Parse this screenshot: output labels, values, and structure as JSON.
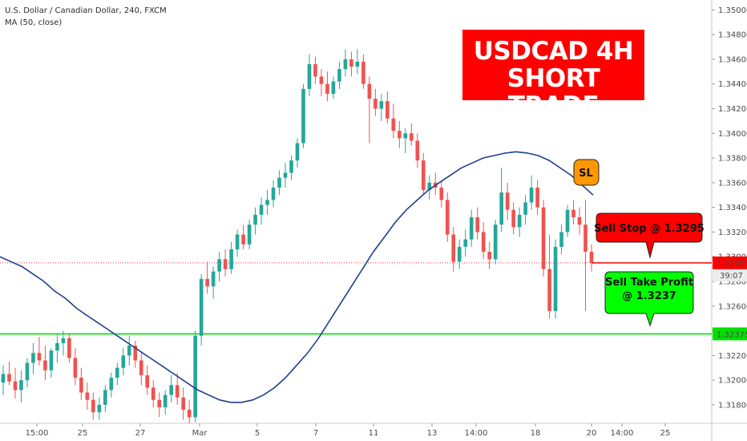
{
  "header": {
    "symbol_line": "U.S. Dollar / Canadian Dollar, 240, FXCM",
    "indicator_line": "MA (50, close)"
  },
  "banner": {
    "line1": "USDCAD 4H",
    "line2": "SHORT TRADE"
  },
  "annotations": {
    "sl": "SL",
    "sell_stop": "Sell Stop @ 1.3295",
    "take_profit_line1": "Sell Take Profit",
    "take_profit_line2": "@ 1.3237"
  },
  "price_labels": {
    "current": "1.32950",
    "countdown": "39:07",
    "green_level": "1.32375"
  },
  "colors": {
    "up_candle": "#26a69a",
    "down_candle": "#ef5350",
    "ma_line": "#1f3f8f",
    "support_line": "#00e000",
    "price_line": "#ff0000",
    "banner": "#ff0000",
    "sl_box": "#ff9800",
    "take_profit_box": "#00ff00"
  },
  "chart_data": {
    "type": "candlestick",
    "ylim": [
      1.3165,
      1.3508
    ],
    "y_ticks": [
      "1.31800",
      "1.32000",
      "1.32200",
      "1.32400",
      "1.32600",
      "1.32800",
      "1.33000",
      "1.33200",
      "1.33400",
      "1.33600",
      "1.33800",
      "1.34000",
      "1.34200",
      "1.34400",
      "1.34600",
      "1.34800",
      "1.35000"
    ],
    "x_ticks": [
      "15:00",
      "25",
      "27",
      "Mar",
      "5",
      "7",
      "11",
      "13",
      "14:00",
      "18",
      "20",
      "14:00",
      "25"
    ],
    "horizontal_lines": [
      {
        "value": 1.32375,
        "role": "support"
      },
      {
        "value": 1.3295,
        "role": "entry"
      }
    ],
    "ohlc": [
      [
        1.3198,
        1.3212,
        1.3188,
        1.3205
      ],
      [
        1.3205,
        1.3215,
        1.3196,
        1.3199
      ],
      [
        1.3199,
        1.321,
        1.3185,
        1.3192
      ],
      [
        1.3192,
        1.3208,
        1.3182,
        1.32
      ],
      [
        1.32,
        1.3218,
        1.3194,
        1.3214
      ],
      [
        1.3214,
        1.323,
        1.3205,
        1.3222
      ],
      [
        1.3222,
        1.3235,
        1.3212,
        1.3216
      ],
      [
        1.3216,
        1.3228,
        1.32,
        1.3208
      ],
      [
        1.3208,
        1.3226,
        1.3202,
        1.3224
      ],
      [
        1.3224,
        1.3238,
        1.3214,
        1.323
      ],
      [
        1.323,
        1.324,
        1.322,
        1.3234
      ],
      [
        1.3234,
        1.3238,
        1.3214,
        1.3218
      ],
      [
        1.3218,
        1.3226,
        1.3196,
        1.3202
      ],
      [
        1.3202,
        1.321,
        1.3184,
        1.319
      ],
      [
        1.319,
        1.3198,
        1.3176,
        1.3184
      ],
      [
        1.3184,
        1.319,
        1.3168,
        1.3174
      ],
      [
        1.3174,
        1.3186,
        1.3168,
        1.318
      ],
      [
        1.318,
        1.3196,
        1.3174,
        1.3192
      ],
      [
        1.3192,
        1.3206,
        1.3186,
        1.3202
      ],
      [
        1.3202,
        1.3214,
        1.3196,
        1.321
      ],
      [
        1.321,
        1.3226,
        1.3204,
        1.322
      ],
      [
        1.322,
        1.3236,
        1.3212,
        1.3228
      ],
      [
        1.3228,
        1.3232,
        1.321,
        1.3216
      ],
      [
        1.3216,
        1.3222,
        1.3196,
        1.3204
      ],
      [
        1.3204,
        1.3212,
        1.3188,
        1.3194
      ],
      [
        1.3194,
        1.32,
        1.3178,
        1.3184
      ],
      [
        1.3184,
        1.319,
        1.317,
        1.3178
      ],
      [
        1.3178,
        1.3192,
        1.3172,
        1.3188
      ],
      [
        1.3188,
        1.3204,
        1.3182,
        1.3196
      ],
      [
        1.3196,
        1.3206,
        1.318,
        1.3186
      ],
      [
        1.3186,
        1.3194,
        1.3168,
        1.3176
      ],
      [
        1.3176,
        1.3184,
        1.3165,
        1.317
      ],
      [
        1.317,
        1.324,
        1.3166,
        1.3236
      ],
      [
        1.3236,
        1.3286,
        1.3228,
        1.3282
      ],
      [
        1.3282,
        1.3296,
        1.327,
        1.3276
      ],
      [
        1.3276,
        1.3292,
        1.3266,
        1.3288
      ],
      [
        1.3288,
        1.3304,
        1.328,
        1.3298
      ],
      [
        1.3298,
        1.3306,
        1.3284,
        1.329
      ],
      [
        1.329,
        1.3312,
        1.3286,
        1.3306
      ],
      [
        1.3306,
        1.3322,
        1.33,
        1.3318
      ],
      [
        1.3318,
        1.3326,
        1.3306,
        1.331
      ],
      [
        1.331,
        1.333,
        1.3306,
        1.3326
      ],
      [
        1.3326,
        1.334,
        1.3318,
        1.3334
      ],
      [
        1.3334,
        1.3348,
        1.3326,
        1.3342
      ],
      [
        1.3342,
        1.3354,
        1.3334,
        1.3346
      ],
      [
        1.3346,
        1.3362,
        1.334,
        1.3356
      ],
      [
        1.3356,
        1.337,
        1.335,
        1.3364
      ],
      [
        1.3364,
        1.3376,
        1.3356,
        1.3368
      ],
      [
        1.3368,
        1.3382,
        1.3362,
        1.3378
      ],
      [
        1.3378,
        1.3396,
        1.3372,
        1.3392
      ],
      [
        1.3392,
        1.344,
        1.3388,
        1.3436
      ],
      [
        1.3436,
        1.3464,
        1.343,
        1.3456
      ],
      [
        1.3456,
        1.3462,
        1.344,
        1.3446
      ],
      [
        1.3446,
        1.3452,
        1.343,
        1.344
      ],
      [
        1.344,
        1.345,
        1.3426,
        1.3432
      ],
      [
        1.3432,
        1.3446,
        1.3428,
        1.3442
      ],
      [
        1.3442,
        1.3458,
        1.3436,
        1.3452
      ],
      [
        1.3452,
        1.3468,
        1.3446,
        1.346
      ],
      [
        1.346,
        1.3466,
        1.3446,
        1.3454
      ],
      [
        1.3454,
        1.3468,
        1.3448,
        1.3458
      ],
      [
        1.3458,
        1.3464,
        1.3436,
        1.344
      ],
      [
        1.344,
        1.3446,
        1.3392,
        1.3428
      ],
      [
        1.3428,
        1.3436,
        1.3414,
        1.342
      ],
      [
        1.342,
        1.3432,
        1.341,
        1.3426
      ],
      [
        1.3426,
        1.3434,
        1.3408,
        1.3412
      ],
      [
        1.3412,
        1.3424,
        1.3396,
        1.3402
      ],
      [
        1.3402,
        1.341,
        1.3388,
        1.3396
      ],
      [
        1.3396,
        1.3404,
        1.3384,
        1.34
      ],
      [
        1.34,
        1.3408,
        1.339,
        1.3394
      ],
      [
        1.3394,
        1.34,
        1.3372,
        1.3378
      ],
      [
        1.3378,
        1.3384,
        1.335,
        1.3354
      ],
      [
        1.3354,
        1.3366,
        1.3346,
        1.336
      ],
      [
        1.336,
        1.3368,
        1.335,
        1.3356
      ],
      [
        1.3356,
        1.3362,
        1.334,
        1.3346
      ],
      [
        1.3346,
        1.3352,
        1.3312,
        1.3318
      ],
      [
        1.3318,
        1.3324,
        1.3288,
        1.3296
      ],
      [
        1.3296,
        1.3314,
        1.329,
        1.3308
      ],
      [
        1.3308,
        1.3322,
        1.33,
        1.3314
      ],
      [
        1.3314,
        1.3338,
        1.3308,
        1.3332
      ],
      [
        1.3332,
        1.334,
        1.3314,
        1.332
      ],
      [
        1.332,
        1.3328,
        1.3298,
        1.3304
      ],
      [
        1.3304,
        1.3312,
        1.329,
        1.3298
      ],
      [
        1.3298,
        1.333,
        1.3294,
        1.3326
      ],
      [
        1.3326,
        1.3372,
        1.332,
        1.3352
      ],
      [
        1.3352,
        1.336,
        1.333,
        1.3338
      ],
      [
        1.3338,
        1.3344,
        1.3318,
        1.3324
      ],
      [
        1.3324,
        1.334,
        1.3316,
        1.3334
      ],
      [
        1.3334,
        1.335,
        1.3326,
        1.3344
      ],
      [
        1.3344,
        1.3366,
        1.3338,
        1.3356
      ],
      [
        1.3356,
        1.3362,
        1.3334,
        1.334
      ],
      [
        1.334,
        1.3346,
        1.3284,
        1.329
      ],
      [
        1.329,
        1.3318,
        1.325,
        1.3256
      ],
      [
        1.3256,
        1.3314,
        1.325,
        1.3308
      ],
      [
        1.3308,
        1.3326,
        1.3302,
        1.332
      ],
      [
        1.332,
        1.3342,
        1.3316,
        1.3338
      ],
      [
        1.3338,
        1.3346,
        1.3326,
        1.3332
      ],
      [
        1.3332,
        1.334,
        1.3318,
        1.3326
      ],
      [
        1.3326,
        1.3346,
        1.3256,
        1.3304
      ],
      [
        1.3304,
        1.331,
        1.3288,
        1.3295
      ]
    ],
    "ma50": [
      1.33,
      1.3296,
      1.3292,
      1.3286,
      1.328,
      1.3272,
      1.3266,
      1.3258,
      1.3252,
      1.3246,
      1.324,
      1.3234,
      1.3228,
      1.3222,
      1.3216,
      1.321,
      1.3204,
      1.3198,
      1.3192,
      1.3188,
      1.3184,
      1.3182,
      1.3182,
      1.3184,
      1.3188,
      1.3194,
      1.3202,
      1.3212,
      1.3222,
      1.3234,
      1.3248,
      1.3262,
      1.3276,
      1.329,
      1.3304,
      1.3316,
      1.3328,
      1.3338,
      1.3346,
      1.3354,
      1.336,
      1.3366,
      1.3372,
      1.3376,
      1.338,
      1.3382,
      1.3384,
      1.3385,
      1.3384,
      1.3382,
      1.3378,
      1.3372,
      1.3366,
      1.3358,
      1.335
    ]
  }
}
